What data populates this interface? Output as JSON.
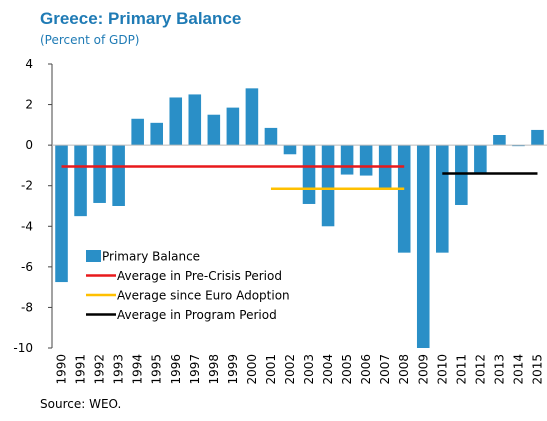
{
  "chart_data": {
    "type": "bar",
    "title": "Greece: Primary Balance",
    "subtitle": "(Percent of GDP)",
    "source": "Source: WEO.",
    "categories": [
      "1990",
      "1991",
      "1992",
      "1993",
      "1994",
      "1995",
      "1996",
      "1997",
      "1998",
      "1999",
      "2000",
      "2001",
      "2002",
      "2003",
      "2004",
      "2005",
      "2006",
      "2007",
      "2008",
      "2009",
      "2010",
      "2011",
      "2012",
      "2013",
      "2014",
      "2015"
    ],
    "series": [
      {
        "name": "Primary Balance",
        "type": "bar",
        "color": "#2a8fc7",
        "values": [
          -6.75,
          -3.5,
          -2.85,
          -3.0,
          1.3,
          1.1,
          2.35,
          2.5,
          1.5,
          1.85,
          2.8,
          0.85,
          -0.45,
          -2.9,
          -4.0,
          -1.45,
          -1.5,
          -2.1,
          -5.3,
          -10.3,
          -5.3,
          -2.95,
          -1.4,
          0.5,
          -0.05,
          0.75
        ]
      },
      {
        "name": "Average in Pre-Crisis Period",
        "type": "line",
        "color": "#e8191c",
        "values": [
          -1.05,
          -1.05,
          -1.05,
          -1.05,
          -1.05,
          -1.05,
          -1.05,
          -1.05,
          -1.05,
          -1.05,
          -1.05,
          -1.05,
          -1.05,
          -1.05,
          -1.05,
          -1.05,
          -1.05,
          -1.05,
          -1.05,
          null,
          null,
          null,
          null,
          null,
          null,
          null
        ]
      },
      {
        "name": "Average since Euro Adoption",
        "type": "line",
        "color": "#ffc000",
        "values": [
          null,
          null,
          null,
          null,
          null,
          null,
          null,
          null,
          null,
          null,
          null,
          -2.15,
          -2.15,
          -2.15,
          -2.15,
          -2.15,
          -2.15,
          -2.15,
          -2.15,
          null,
          null,
          null,
          null,
          null,
          null,
          null
        ]
      },
      {
        "name": "Average in Program Period",
        "type": "line",
        "color": "#000000",
        "values": [
          null,
          null,
          null,
          null,
          null,
          null,
          null,
          null,
          null,
          null,
          null,
          null,
          null,
          null,
          null,
          null,
          null,
          null,
          null,
          null,
          -1.4,
          -1.4,
          -1.4,
          -1.4,
          -1.4,
          -1.4
        ]
      }
    ],
    "ylim": [
      -10,
      4
    ],
    "yticks": [
      -10,
      -8,
      -6,
      -4,
      -2,
      0,
      2,
      4
    ]
  }
}
